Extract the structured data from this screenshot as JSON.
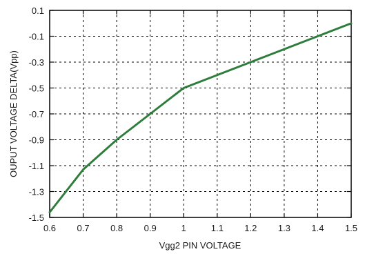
{
  "chart_data": {
    "type": "line",
    "xlabel": "Vgg2 PIN VOLTAGE",
    "ylabel": "OUPUT VOLTAGE DELTA(Vpp)",
    "xlim": [
      0.6,
      1.5
    ],
    "ylim": [
      -1.5,
      0.1
    ],
    "x_ticks": [
      "0.6",
      "0.7",
      "0.8",
      "0.9",
      "1",
      "1.1",
      "1.2",
      "1.3",
      "1.4",
      "1.5"
    ],
    "y_ticks": [
      "0.1",
      "-0.1",
      "-0.3",
      "-0.5",
      "-0.7",
      "-0.9",
      "-1.1",
      "-1.3",
      "-1.5"
    ],
    "grid": true,
    "series": [
      {
        "color": "#2e7d3c",
        "x": [
          0.6,
          0.7,
          0.8,
          0.9,
          1.0,
          1.1,
          1.2,
          1.3,
          1.4,
          1.5
        ],
        "y": [
          -1.46,
          -1.13,
          -0.9,
          -0.7,
          -0.5,
          -0.4,
          -0.3,
          -0.2,
          -0.1,
          0.0
        ]
      }
    ]
  }
}
